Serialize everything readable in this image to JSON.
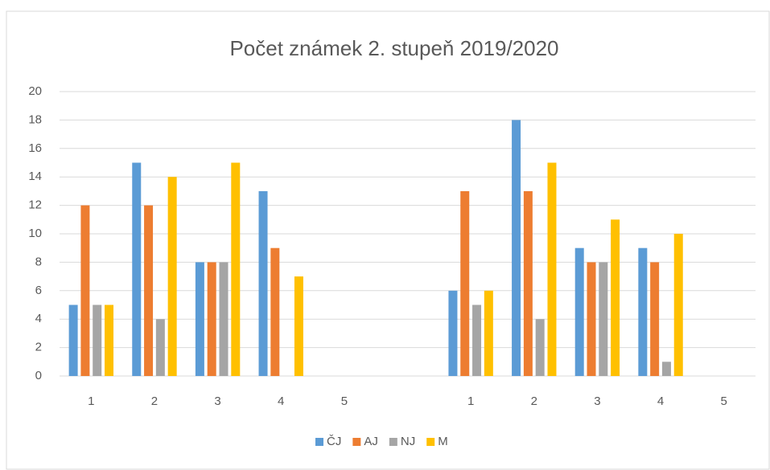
{
  "chart_data": {
    "type": "bar",
    "title": "Počet známek 2. stupeň 2019/2020",
    "categories": [
      "1",
      "2",
      "3",
      "4",
      "5",
      null,
      "1",
      "2",
      "3",
      "4",
      "5"
    ],
    "series": [
      {
        "name": "ČJ",
        "color": "#5b9bd5",
        "values": [
          5,
          15,
          8,
          13,
          0,
          null,
          6,
          18,
          9,
          9,
          0
        ]
      },
      {
        "name": "AJ",
        "color": "#ed7d31",
        "values": [
          12,
          12,
          8,
          9,
          0,
          null,
          13,
          13,
          8,
          8,
          0
        ]
      },
      {
        "name": "NJ",
        "color": "#a5a5a5",
        "values": [
          5,
          4,
          8,
          0,
          0,
          null,
          5,
          4,
          8,
          1,
          0
        ]
      },
      {
        "name": "M",
        "color": "#ffc000",
        "values": [
          5,
          14,
          15,
          7,
          0,
          null,
          6,
          15,
          11,
          10,
          0
        ]
      }
    ],
    "ylim": [
      0,
      20
    ],
    "yticks": [
      0,
      2,
      4,
      6,
      8,
      10,
      12,
      14,
      16,
      18,
      20
    ],
    "grid": true,
    "legend": "bottom"
  }
}
